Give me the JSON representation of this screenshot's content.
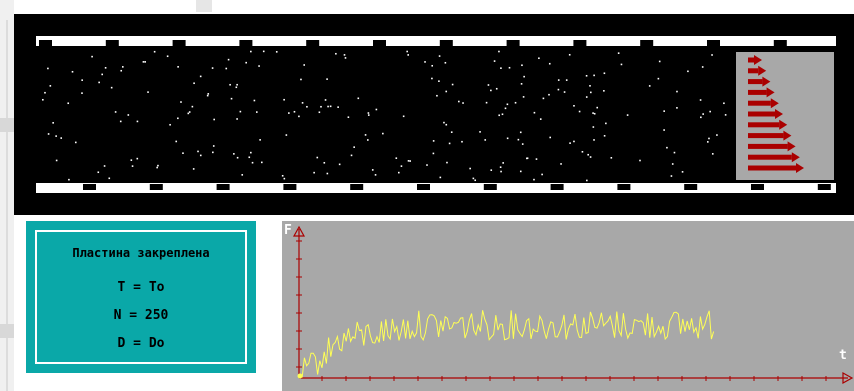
{
  "status": {
    "title": "Пластина закреплена",
    "t_line": "T = To",
    "n_line": "N = 250",
    "d_line": "D = Do"
  },
  "graph": {
    "y_axis_label": "F",
    "x_axis_label": "t",
    "signal_color": "#ffff55",
    "axis_color": "#aa0000"
  },
  "colors": {
    "simulation_background": "#000000",
    "plate": "#ffffff",
    "profile_arrows": "#aa0000",
    "profile_background": "#a8a8a8",
    "panel_background": "#0aa8a8"
  },
  "icons": {
    "particles": "white-dots",
    "velocity_profile": "red-right-arrows"
  }
}
